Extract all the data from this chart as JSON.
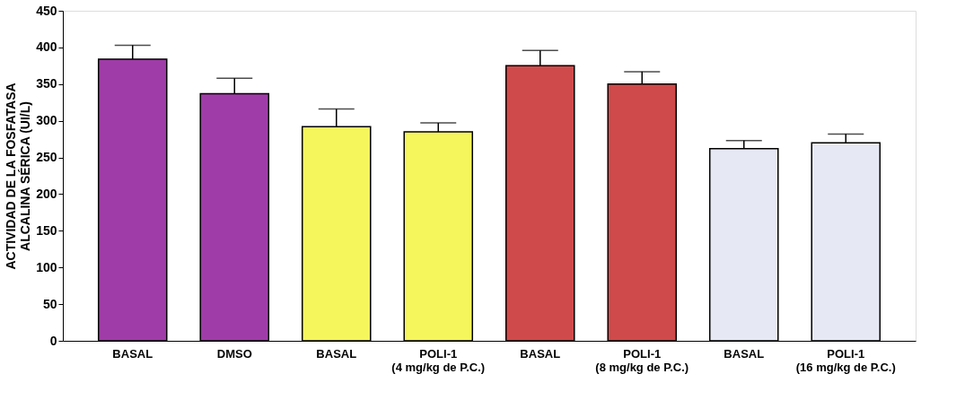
{
  "chart_data": {
    "type": "bar",
    "ylabel": "ACTIVIDAD DE LA FOSFATASA\nALCALINA SÉRICA (UI/L)",
    "categories": [
      "BASAL",
      "DMSO",
      "BASAL",
      "POLI-1\n(4 mg/kg de P.C.)",
      "BASAL",
      "POLI-1\n(8 mg/kg de P.C.)",
      "BASAL",
      "POLI-1\n(16 mg/kg de P.C.)"
    ],
    "values": [
      384,
      337,
      292,
      285,
      375,
      350,
      262,
      270
    ],
    "errors": [
      19,
      21,
      24,
      12,
      21,
      17,
      11,
      12
    ],
    "colors": [
      "#a03ca8",
      "#a03ca8",
      "#f5f55c",
      "#f5f55c",
      "#cf4a4a",
      "#cf4a4a",
      "#e6e8f4",
      "#e6e8f4"
    ],
    "ylim": [
      0,
      450
    ],
    "yticks": [
      0,
      50,
      100,
      150,
      200,
      250,
      300,
      350,
      400,
      450
    ],
    "grid": false
  }
}
